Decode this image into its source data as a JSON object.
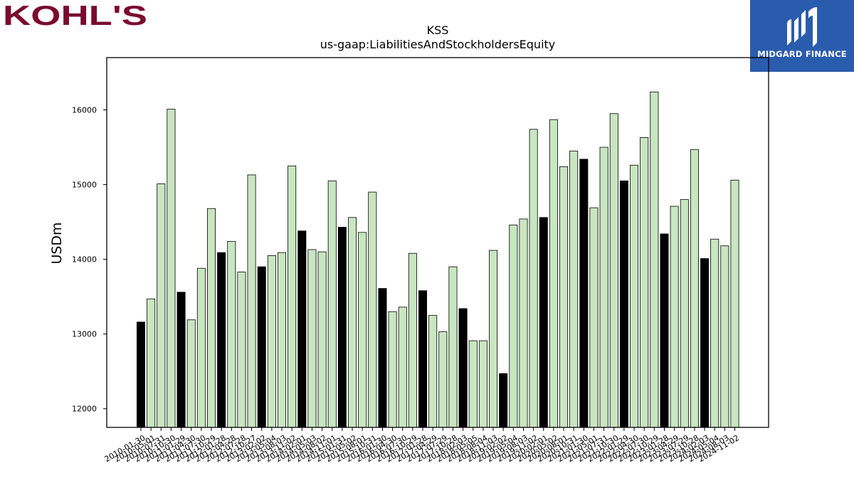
{
  "brand": {
    "left_logo_text": "KOHL'S",
    "left_logo_color": "#7a0a2e",
    "right_logo_text": "MIDGARD FINANCE",
    "right_logo_bg": "#2a5cad"
  },
  "chart_data": {
    "type": "bar",
    "title": "KSS",
    "subtitle": "us-gaap:LiabilitiesAndStockholdersEquity",
    "xlabel": "",
    "ylabel": "USDm",
    "ylim": [
      11750,
      16700
    ],
    "yticks": [
      12000,
      13000,
      14000,
      15000,
      16000
    ],
    "grid": false,
    "legend": "none",
    "colors": {
      "annual": "#000000",
      "quarterly": "#c8e6c0",
      "edge": "#000000"
    },
    "categories": [
      "2010-01-30",
      "2010-05-01",
      "2010-07-31",
      "2010-10-30",
      "2011-01-29",
      "2011-04-30",
      "2011-07-30",
      "2011-10-29",
      "2012-01-28",
      "2012-04-28",
      "2012-07-28",
      "2012-10-27",
      "2013-02-02",
      "2013-05-04",
      "2013-08-03",
      "2013-11-02",
      "2014-02-01",
      "2014-05-03",
      "2014-08-02",
      "2014-11-01",
      "2015-01-31",
      "2015-05-02",
      "2015-08-01",
      "2015-10-31",
      "2016-01-30",
      "2016-04-30",
      "2016-07-30",
      "2016-10-29",
      "2017-01-28",
      "2017-04-29",
      "2017-07-29",
      "2017-10-28",
      "2018-02-03",
      "2018-05-05",
      "2018-08-04",
      "2018-11-03",
      "2019-02-02",
      "2019-05-04",
      "2019-08-03",
      "2019-11-02",
      "2020-02-01",
      "2020-05-02",
      "2020-08-01",
      "2020-10-31",
      "2021-01-30",
      "2021-05-01",
      "2021-07-31",
      "2021-10-30",
      "2022-01-29",
      "2022-04-30",
      "2022-07-30",
      "2022-10-29",
      "2023-01-28",
      "2023-04-29",
      "2023-07-29",
      "2023-10-28",
      "2024-02-03",
      "2024-05-04",
      "2024-08-03",
      "2024-11-02"
    ],
    "values": [
      13160,
      13470,
      15010,
      16010,
      13560,
      13190,
      13880,
      14680,
      14090,
      14240,
      13830,
      15130,
      13900,
      14050,
      14090,
      15250,
      14380,
      14130,
      14100,
      15050,
      14430,
      14560,
      14360,
      14900,
      13610,
      13300,
      13360,
      14080,
      13580,
      13250,
      13030,
      13900,
      13340,
      12910,
      12910,
      14120,
      12470,
      14460,
      14540,
      15740,
      14560,
      15870,
      15240,
      15450,
      15340,
      14690,
      15500,
      15950,
      15050,
      15260,
      15630,
      16240,
      14340,
      14710,
      14800,
      15470,
      14010,
      14270,
      14180,
      15060
    ],
    "annual_flags": [
      1,
      0,
      0,
      0,
      1,
      0,
      0,
      0,
      1,
      0,
      0,
      0,
      1,
      0,
      0,
      0,
      1,
      0,
      0,
      0,
      1,
      0,
      0,
      0,
      1,
      0,
      0,
      0,
      1,
      0,
      0,
      0,
      1,
      0,
      0,
      0,
      1,
      0,
      0,
      0,
      1,
      0,
      0,
      0,
      1,
      0,
      0,
      0,
      1,
      0,
      0,
      0,
      1,
      0,
      0,
      0,
      1,
      0,
      0,
      0
    ]
  }
}
